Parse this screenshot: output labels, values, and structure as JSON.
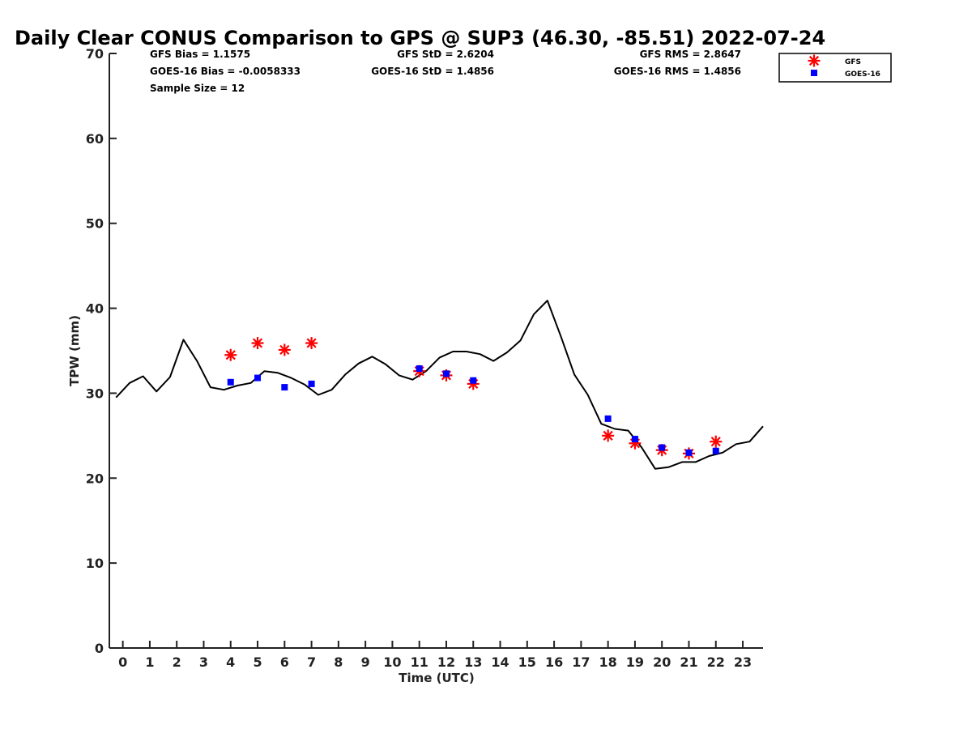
{
  "chart_data": {
    "type": "line",
    "title": "Daily Clear CONUS Comparison to GPS @ SUP3 (46.30, -85.51) 2022-07-24",
    "xlabel": "Time (UTC)",
    "ylabel": "TPW (mm)",
    "xlim": [
      -0.5,
      23.75
    ],
    "ylim": [
      0,
      70
    ],
    "xticks": [
      0,
      1,
      2,
      3,
      4,
      5,
      6,
      7,
      8,
      9,
      10,
      11,
      12,
      13,
      14,
      15,
      16,
      17,
      18,
      19,
      20,
      21,
      22,
      23
    ],
    "yticks": [
      0,
      10,
      20,
      30,
      40,
      50,
      60,
      70
    ],
    "grid": false,
    "legend_position": "top-right",
    "stats": {
      "gfs_bias": "GFS Bias = 1.1575",
      "goes_bias": "GOES-16 Bias = -0.0058333",
      "sample_size": "Sample Size = 12",
      "gfs_std": "GFS StD = 2.6204",
      "goes_std": "GOES-16 StD = 1.4856",
      "gfs_rms": "GFS RMS = 2.8647",
      "goes_rms": "GOES-16 RMS = 1.4856"
    },
    "series": [
      {
        "kind": "line",
        "color": "#000000",
        "x": [
          -0.25,
          0.25,
          0.75,
          1.25,
          1.75,
          2.25,
          2.75,
          3.25,
          3.75,
          4.25,
          4.75,
          5.25,
          5.75,
          6.25,
          6.75,
          7.25,
          7.75,
          8.25,
          8.75,
          9.25,
          9.75,
          10.25,
          10.75,
          11.25,
          11.75,
          12.25,
          12.75,
          13.25,
          13.75,
          14.25,
          14.75,
          15.25,
          15.75,
          16.25,
          16.75,
          17.25,
          17.75,
          18.25,
          18.75,
          19.25,
          19.75,
          20.25,
          20.75,
          21.25,
          21.75,
          22.25,
          22.75,
          23.25,
          23.75
        ],
        "y": [
          29.5,
          31.2,
          32.0,
          30.2,
          31.9,
          36.3,
          33.8,
          30.7,
          30.4,
          30.9,
          31.2,
          32.6,
          32.4,
          31.8,
          31.0,
          29.8,
          30.4,
          32.2,
          33.5,
          34.3,
          33.4,
          32.1,
          31.6,
          32.6,
          34.2,
          34.9,
          34.9,
          34.6,
          33.8,
          34.8,
          36.2,
          39.3,
          40.9,
          36.7,
          32.2,
          29.8,
          26.4,
          25.8,
          25.6,
          23.6,
          21.1,
          21.3,
          21.9,
          21.9,
          22.6,
          23.0,
          24.0,
          24.3,
          26.1
        ]
      },
      {
        "name": "GFS",
        "kind": "marker",
        "marker": "asterisk",
        "color": "#ff0000",
        "x": [
          4,
          5,
          6,
          7,
          11,
          12,
          13,
          18,
          19,
          20,
          21,
          22
        ],
        "y": [
          34.5,
          35.9,
          35.1,
          35.9,
          32.6,
          32.1,
          31.1,
          25.0,
          24.1,
          23.3,
          22.9,
          24.3
        ]
      },
      {
        "name": "GOES-16",
        "kind": "marker",
        "marker": "square",
        "color": "#0000ff",
        "x": [
          4,
          5,
          6,
          7,
          11,
          12,
          13,
          18,
          19,
          20,
          21,
          22
        ],
        "y": [
          31.3,
          31.8,
          30.7,
          31.1,
          32.9,
          32.3,
          31.5,
          27.0,
          24.6,
          23.6,
          23.0,
          23.2
        ]
      }
    ]
  }
}
